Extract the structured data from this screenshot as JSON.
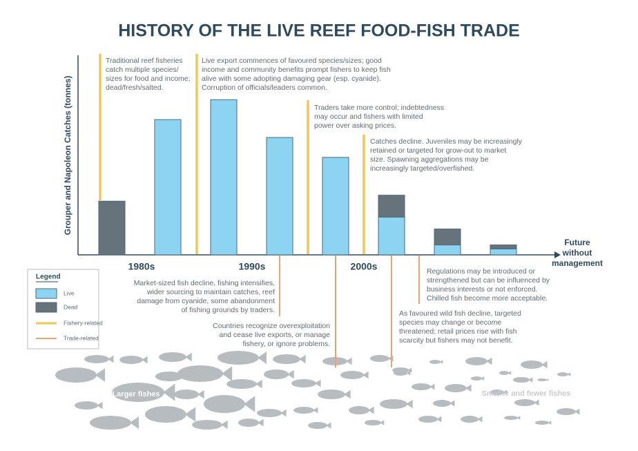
{
  "chart_data": {
    "type": "bar",
    "title": "HISTORY OF THE LIVE REEF FOOD-FISH TRADE",
    "y_label": "Grouper and Napoleon Catches (tonnes)",
    "categories": [
      null,
      null,
      null,
      null,
      null,
      null,
      null,
      null
    ],
    "periods": [
      "1980s",
      "1990s",
      "2000s"
    ],
    "future_label": [
      "Future",
      "without",
      "management"
    ],
    "stacked": true,
    "ylim": [
      0,
      100
    ],
    "series": [
      {
        "name": "Live",
        "color": "#8dd4f2",
        "values": [
          null,
          68,
          78,
          59,
          49,
          19,
          5,
          3
        ]
      },
      {
        "name": "Dead",
        "color": "#67737b",
        "values": [
          27,
          null,
          null,
          null,
          null,
          11,
          8,
          2
        ]
      }
    ],
    "legend": {
      "title": "Legend",
      "fishery": "Fishery-related",
      "trade": "Trade-related"
    },
    "fishery_color": "#f2c65a",
    "trade_color": "#eea173",
    "fishery_notes": [
      [
        "Traditional reef fisheries",
        "catch multiple species/",
        "sizes for food and income;",
        "dead/fresh/salted."
      ],
      [
        "Live export commences of favoured species/sizes; good",
        "income and community benefits prompt fishers to keep fish",
        "alive with some adopting damaging gear (esp. cyanide).",
        "Corruption of officials/leaders common."
      ],
      [
        "Traders take more control; indebtedness",
        "may occur and fishers with limited",
        "power over asking prices."
      ],
      [
        "Catches decline. Juveniles may be increasingly",
        "retained or targeted for grow-out to market",
        "size. Spawning aggregations may be",
        "increasingly targeted/overfished."
      ]
    ],
    "trade_notes": [
      [
        "Market-sized fish decline, fishing intensifies,",
        "wider sourcing to maintain catches, reef",
        "damage from cyanide, some abandonment",
        "of fishing grounds by traders."
      ],
      [
        "Countries recognize overexploitation",
        "and cease live exports, or manage",
        "fishery, or ignore problems."
      ],
      [
        "As favoured wild fish decline, targeted",
        "species may change or become",
        "threatened; retail prices rise with fish",
        "scarcity but fishers may not benefit."
      ],
      [
        "Regulations may be introduced or",
        "strengthened but can be influenced by",
        "business interests or not enforced.",
        "Chilled fish become more acceptable."
      ]
    ],
    "fish_labels": [
      "Larger fishes",
      "Smaller and fewer fishes"
    ]
  }
}
